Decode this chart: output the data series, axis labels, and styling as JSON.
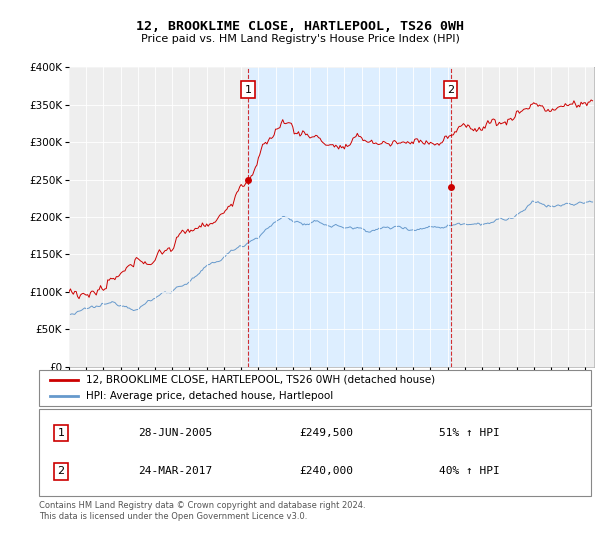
{
  "title": "12, BROOKLIME CLOSE, HARTLEPOOL, TS26 0WH",
  "subtitle": "Price paid vs. HM Land Registry's House Price Index (HPI)",
  "property_label": "12, BROOKLIME CLOSE, HARTLEPOOL, TS26 0WH (detached house)",
  "hpi_label": "HPI: Average price, detached house, Hartlepool",
  "property_color": "#cc0000",
  "hpi_color": "#6699cc",
  "shade_color": "#ddeeff",
  "bg_color": "#f5f5f5",
  "transaction1_date": "28-JUN-2005",
  "transaction1_price": "£249,500",
  "transaction1_hpi": "51% ↑ HPI",
  "transaction2_date": "24-MAR-2017",
  "transaction2_price": "£240,000",
  "transaction2_hpi": "40% ↑ HPI",
  "footer": "Contains HM Land Registry data © Crown copyright and database right 2024.\nThis data is licensed under the Open Government Licence v3.0.",
  "ylim": [
    0,
    400000
  ],
  "yticks": [
    0,
    50000,
    100000,
    150000,
    200000,
    250000,
    300000,
    350000,
    400000
  ]
}
